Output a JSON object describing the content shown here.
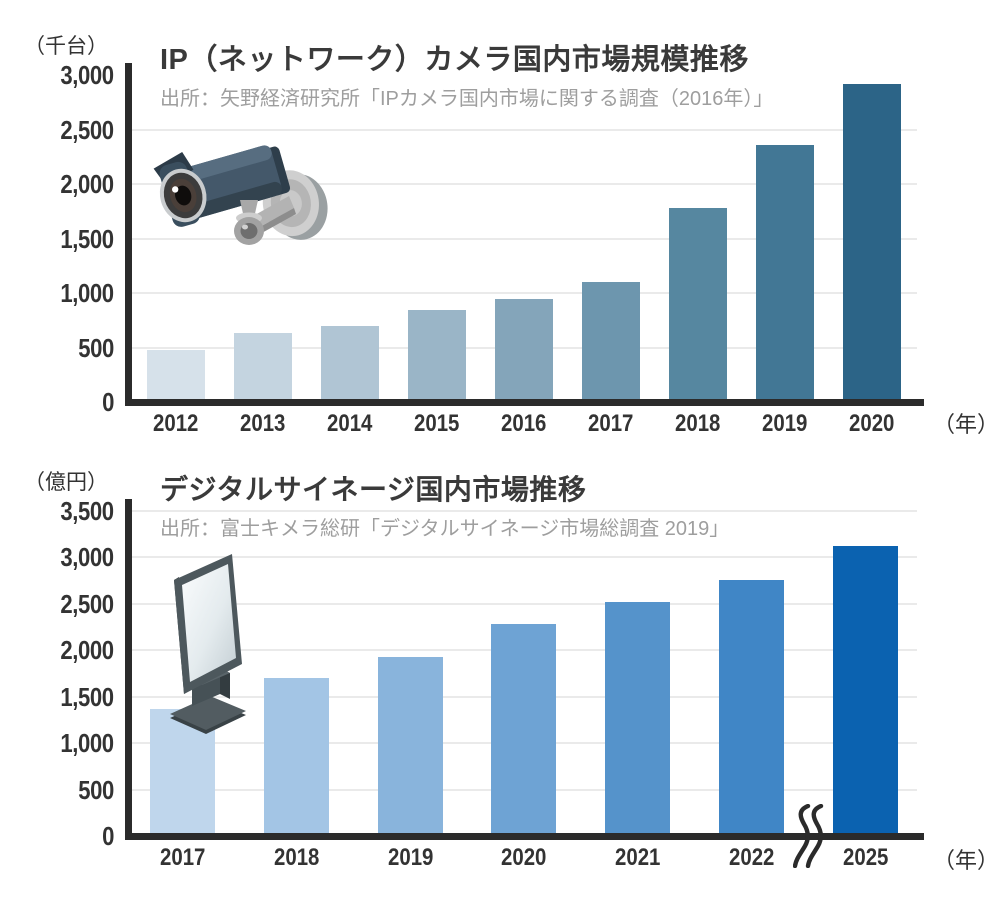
{
  "colors": {
    "background": "#ffffff",
    "axis": "#2b2b2b",
    "gridline": "#eaeaea",
    "tick_label": "#333333",
    "title": "#3a3a3a",
    "source": "#9e9e9e"
  },
  "chart_data": [
    {
      "type": "bar",
      "title": "IP（ネットワーク）カメラ国内市場規模推移",
      "source": "出所：矢野経済研究所「IPカメラ国内市場に関する調査（2016年）」",
      "y_unit": "（千台）",
      "x_unit": "（年）",
      "categories": [
        "2012",
        "2013",
        "2014",
        "2015",
        "2016",
        "2017",
        "2018",
        "2019",
        "2020"
      ],
      "values": [
        480,
        630,
        700,
        840,
        950,
        1105,
        1780,
        2360,
        2920
      ],
      "ylim": [
        0,
        3000
      ],
      "ytick_interval": 500,
      "yticks": [
        "3,000",
        "2,500",
        "2,000",
        "1,500",
        "1,000",
        "500",
        "0"
      ],
      "grid": "horizontal",
      "legend": "none",
      "bar_colors": [
        "#d6e1ea",
        "#c4d4e0",
        "#b0c5d4",
        "#9ab5c7",
        "#84a5ba",
        "#6d96ae",
        "#5687a0",
        "#427795",
        "#2c6487"
      ],
      "illustration": "security-camera-icon"
    },
    {
      "type": "bar",
      "title": "デジタルサイネージ国内市場推移",
      "source": "出所：富士キメラ総研「デジタルサイネージ市場総調査 2019」",
      "y_unit": "（億円）",
      "x_unit": "（年）",
      "categories": [
        "2017",
        "2018",
        "2019",
        "2020",
        "2021",
        "2022",
        "2025"
      ],
      "values": [
        1370,
        1705,
        1930,
        2280,
        2525,
        2760,
        3125
      ],
      "ylim": [
        0,
        3500
      ],
      "ytick_interval": 500,
      "yticks": [
        "3,500",
        "3,000",
        "2,500",
        "2,000",
        "1,500",
        "1,000",
        "500",
        "0"
      ],
      "grid": "horizontal",
      "legend": "none",
      "axis_break_between": [
        "2022",
        "2025"
      ],
      "bar_colors": [
        "#bfd6ec",
        "#a3c5e5",
        "#89b4dc",
        "#6ea3d4",
        "#5593cb",
        "#4086c6",
        "#0b62b0"
      ],
      "illustration": "digital-signage-icon"
    }
  ]
}
